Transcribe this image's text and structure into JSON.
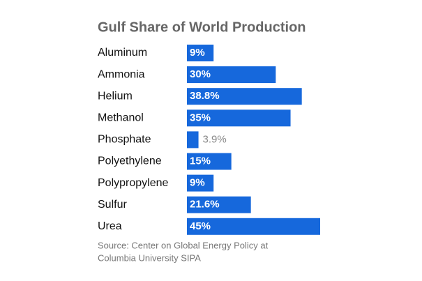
{
  "chart_data": {
    "type": "bar",
    "orientation": "horizontal",
    "title": "Gulf Share of World Production",
    "categories": [
      "Aluminum",
      "Ammonia",
      "Helium",
      "Methanol",
      "Phosphate",
      "Polyethylene",
      "Polypropylene",
      "Sulfur",
      "Urea"
    ],
    "values": [
      9,
      30,
      38.8,
      35,
      3.9,
      15,
      9,
      21.6,
      45
    ],
    "value_labels": [
      "9%",
      "30%",
      "38.8%",
      "35%",
      "3.9%",
      "15%",
      "9%",
      "21.6%",
      "45%"
    ],
    "color": "#1668dc",
    "source": [
      "Source: Center on Global Energy Policy at",
      "Columbia University SIPA"
    ]
  }
}
